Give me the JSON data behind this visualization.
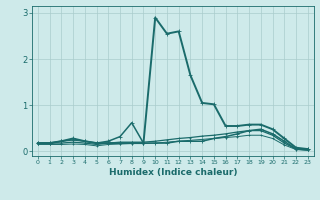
{
  "xlabel": "Humidex (Indice chaleur)",
  "background_color": "#ceeaea",
  "line_color": "#1a6b6b",
  "grid_color": "#aacccc",
  "xlim": [
    -0.5,
    23.5
  ],
  "ylim": [
    -0.1,
    3.15
  ],
  "yticks": [
    0,
    1,
    2,
    3
  ],
  "xticks": [
    0,
    1,
    2,
    3,
    4,
    5,
    6,
    7,
    8,
    9,
    10,
    11,
    12,
    13,
    14,
    15,
    16,
    17,
    18,
    19,
    20,
    21,
    22,
    23
  ],
  "curves": [
    {
      "x": [
        0,
        1,
        2,
        3,
        4,
        5,
        6,
        7,
        8,
        9,
        10,
        11,
        12,
        13,
        14,
        15,
        16,
        17,
        18,
        19,
        20,
        21,
        22,
        23
      ],
      "y": [
        0.18,
        0.18,
        0.22,
        0.28,
        0.22,
        0.18,
        0.18,
        0.18,
        0.18,
        0.18,
        2.9,
        2.55,
        2.6,
        1.65,
        1.05,
        1.02,
        0.55,
        0.55,
        0.58,
        0.58,
        0.48,
        0.28,
        0.08,
        0.05
      ],
      "lw": 1.4,
      "ms": 2.5
    },
    {
      "x": [
        0,
        1,
        2,
        3,
        4,
        5,
        6,
        7,
        8,
        9,
        10,
        11,
        12,
        13,
        14,
        15,
        16,
        17,
        18,
        19,
        20,
        21,
        22,
        23
      ],
      "y": [
        0.18,
        0.18,
        0.22,
        0.25,
        0.22,
        0.18,
        0.22,
        0.32,
        0.62,
        0.18,
        0.18,
        0.18,
        0.22,
        0.22,
        0.22,
        0.28,
        0.32,
        0.38,
        0.45,
        0.48,
        0.38,
        0.22,
        0.05,
        0.05
      ],
      "lw": 1.1,
      "ms": 2.2
    },
    {
      "x": [
        0,
        1,
        2,
        3,
        4,
        5,
        6,
        7,
        8,
        9,
        10,
        11,
        12,
        13,
        14,
        15,
        16,
        17,
        18,
        19,
        20,
        21,
        22,
        23
      ],
      "y": [
        0.18,
        0.18,
        0.18,
        0.2,
        0.18,
        0.15,
        0.18,
        0.2,
        0.2,
        0.2,
        0.22,
        0.25,
        0.28,
        0.3,
        0.33,
        0.35,
        0.38,
        0.42,
        0.45,
        0.45,
        0.35,
        0.18,
        0.05,
        0.03
      ],
      "lw": 0.9,
      "ms": 1.8
    },
    {
      "x": [
        0,
        1,
        2,
        3,
        4,
        5,
        6,
        7,
        8,
        9,
        10,
        11,
        12,
        13,
        14,
        15,
        16,
        17,
        18,
        19,
        20,
        21,
        22,
        23
      ],
      "y": [
        0.15,
        0.15,
        0.15,
        0.16,
        0.15,
        0.12,
        0.15,
        0.16,
        0.17,
        0.17,
        0.18,
        0.2,
        0.22,
        0.24,
        0.26,
        0.28,
        0.3,
        0.32,
        0.35,
        0.35,
        0.28,
        0.14,
        0.04,
        0.02
      ],
      "lw": 0.7,
      "ms": 1.5
    }
  ]
}
